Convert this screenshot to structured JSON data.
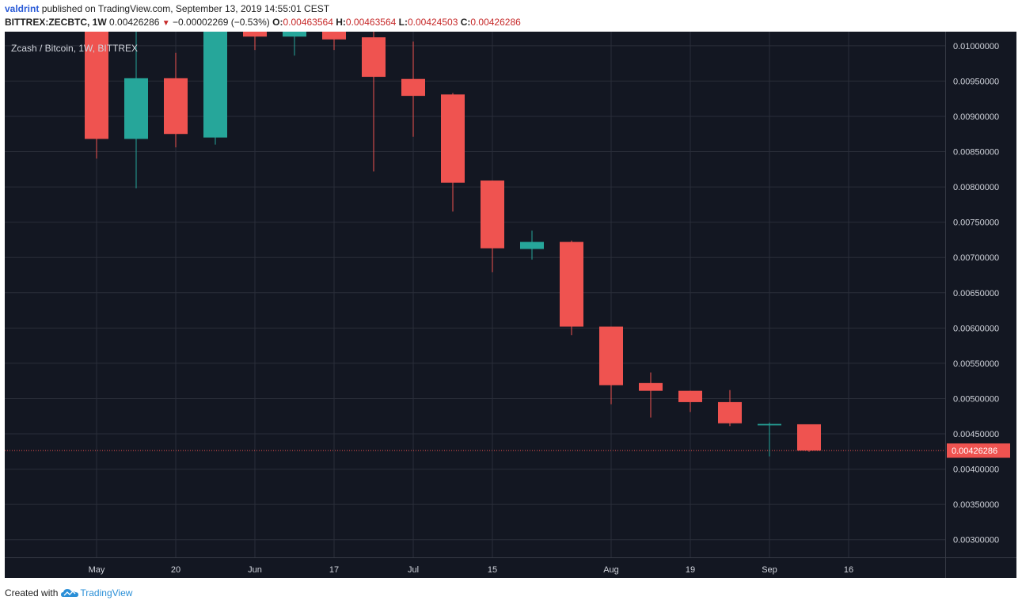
{
  "header": {
    "user": "valdrint",
    "published_text": "published on TradingView.com, September 13, 2019 14:55:01 CEST",
    "symbol": "BITTREX:ZECBTC, 1W",
    "last": "0.00426286",
    "change": "−0.00002269 (−0.53%)",
    "o_label": "O:",
    "o_value": "0.00463564",
    "h_label": "H:",
    "h_value": "0.00463564",
    "l_label": "L:",
    "l_value": "0.00424503",
    "c_label": "C:",
    "c_value": "0.00426286"
  },
  "footer": {
    "created_with": "Created with",
    "brand": "TradingView"
  },
  "colors": {
    "background": "#131722",
    "grid": "#2a2e39",
    "up": "#26a69a",
    "down": "#ef5350",
    "axis_text": "#d1d4dc",
    "price_label_bg": "#ef5350"
  },
  "chart_data": {
    "type": "candlestick",
    "title": "Zcash / Bitcoin, 1W, BITTREX",
    "ylim": [
      0.00275,
      0.0102
    ],
    "y_ticks": [
      "0.00300000",
      "0.00350000",
      "0.00400000",
      "0.00450000",
      "0.00500000",
      "0.00550000",
      "0.00600000",
      "0.00650000",
      "0.00700000",
      "0.00750000",
      "0.00800000",
      "0.00850000",
      "0.00900000",
      "0.00950000",
      "0.01000000"
    ],
    "x_ticks": [
      {
        "label": "May",
        "index": 0
      },
      {
        "label": "20",
        "index": 2
      },
      {
        "label": "Jun",
        "index": 4
      },
      {
        "label": "17",
        "index": 6
      },
      {
        "label": "Jul",
        "index": 8
      },
      {
        "label": "15",
        "index": 10
      },
      {
        "label": "Aug",
        "index": 13
      },
      {
        "label": "19",
        "index": 15
      },
      {
        "label": "Sep",
        "index": 17
      },
      {
        "label": "16",
        "index": 19
      }
    ],
    "current_price": 0.00426286,
    "current_price_label": "0.00426286",
    "candles": [
      {
        "date": "2019-05-06",
        "open": 0.0105,
        "high": 0.0106,
        "low": 0.0084,
        "close": 0.00868
      },
      {
        "date": "2019-05-13",
        "open": 0.00868,
        "high": 0.0102,
        "low": 0.00798,
        "close": 0.00954
      },
      {
        "date": "2019-05-20",
        "open": 0.00954,
        "high": 0.0099,
        "low": 0.00856,
        "close": 0.00875
      },
      {
        "date": "2019-05-27",
        "open": 0.0087,
        "high": 0.0104,
        "low": 0.0086,
        "close": 0.0102
      },
      {
        "date": "2019-06-03",
        "open": 0.01022,
        "high": 0.0104,
        "low": 0.00994,
        "close": 0.01013
      },
      {
        "date": "2019-06-10",
        "open": 0.01013,
        "high": 0.0104,
        "low": 0.00986,
        "close": 0.0103
      },
      {
        "date": "2019-06-17",
        "open": 0.0104,
        "high": 0.0106,
        "low": 0.00994,
        "close": 0.01009
      },
      {
        "date": "2019-06-24",
        "open": 0.01012,
        "high": 0.0103,
        "low": 0.00822,
        "close": 0.00956
      },
      {
        "date": "2019-07-01",
        "open": 0.00953,
        "high": 0.01006,
        "low": 0.00871,
        "close": 0.00929
      },
      {
        "date": "2019-07-08",
        "open": 0.00931,
        "high": 0.00933,
        "low": 0.00765,
        "close": 0.00806
      },
      {
        "date": "2019-07-15",
        "open": 0.00809,
        "high": 0.00809,
        "low": 0.00679,
        "close": 0.00713
      },
      {
        "date": "2019-07-22",
        "open": 0.00712,
        "high": 0.00738,
        "low": 0.00697,
        "close": 0.00722
      },
      {
        "date": "2019-07-29",
        "open": 0.00722,
        "high": 0.00724,
        "low": 0.0059,
        "close": 0.00602
      },
      {
        "date": "2019-08-05",
        "open": 0.00602,
        "high": 0.00602,
        "low": 0.00492,
        "close": 0.00519
      },
      {
        "date": "2019-08-12",
        "open": 0.00522,
        "high": 0.00537,
        "low": 0.00473,
        "close": 0.00511
      },
      {
        "date": "2019-08-19",
        "open": 0.00511,
        "high": 0.00511,
        "low": 0.00481,
        "close": 0.00495
      },
      {
        "date": "2019-08-26",
        "open": 0.00495,
        "high": 0.00512,
        "low": 0.00461,
        "close": 0.00465
      },
      {
        "date": "2019-09-02",
        "open": 0.00462,
        "high": 0.00466,
        "low": 0.00418,
        "close": 0.00464
      },
      {
        "date": "2019-09-09",
        "open": 0.00463564,
        "high": 0.00463564,
        "low": 0.00424503,
        "close": 0.00426286
      }
    ]
  }
}
